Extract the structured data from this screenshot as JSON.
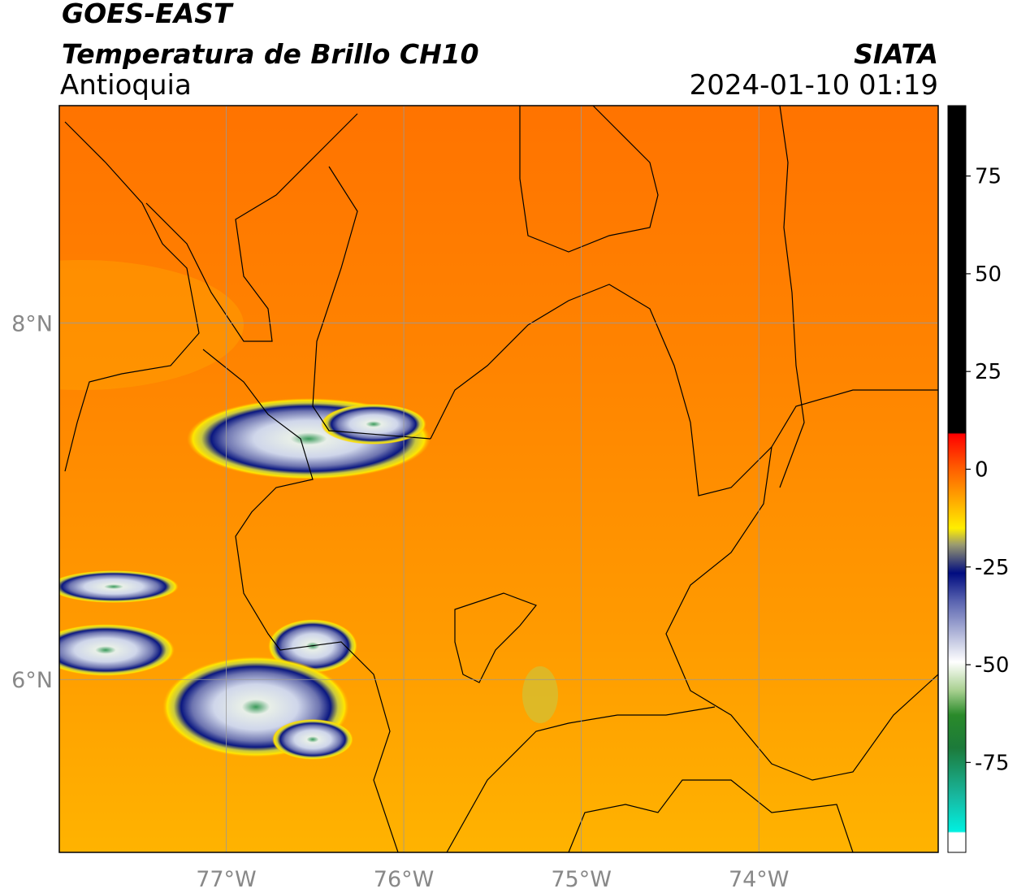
{
  "header": {
    "title": "GOES-EAST",
    "subtitle": "Temperatura de Brillo CH10",
    "region": "Antioquia",
    "source": "SIATA",
    "datetime": "2024-01-10 01:19"
  },
  "map": {
    "xlim": [
      -77.94,
      -72.99
    ],
    "ylim": [
      5.03,
      9.22
    ],
    "xticks": [
      {
        "value": -77,
        "label": "77°W"
      },
      {
        "value": -76,
        "label": "76°W"
      },
      {
        "value": -75,
        "label": "75°W"
      },
      {
        "value": -74,
        "label": "74°W"
      }
    ],
    "yticks": [
      {
        "value": 8,
        "label": "8°N"
      },
      {
        "value": 6,
        "label": "6°N"
      }
    ],
    "grid": true
  },
  "colorbar": {
    "lim": [
      -98,
      93
    ],
    "ticks": [
      75,
      50,
      25,
      0,
      -25,
      -50,
      -75
    ]
  }
}
